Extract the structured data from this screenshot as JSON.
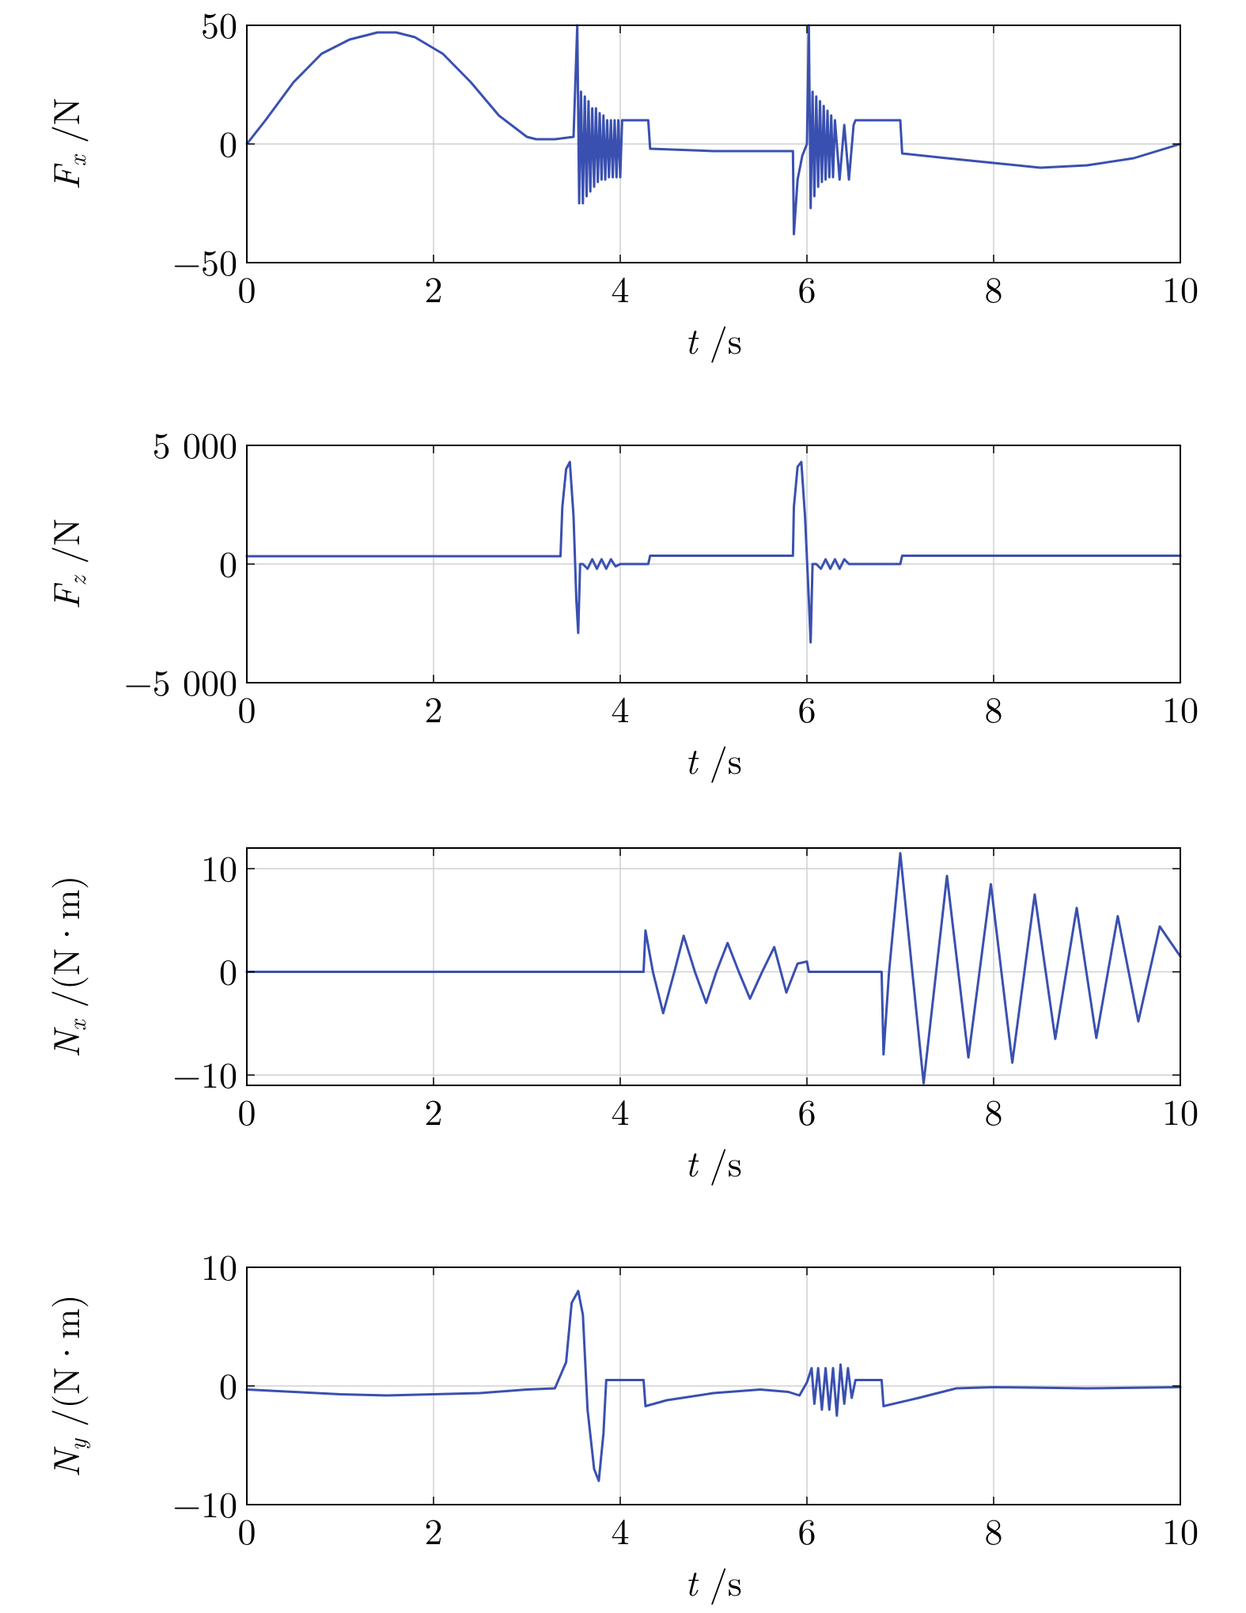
{
  "chart_data": [
    {
      "type": "line",
      "xlabel_symbol": "t",
      "xlabel_unit": " /s",
      "ylabel_symbol": "F",
      "ylabel_sub": "x",
      "ylabel_unit": " /N",
      "xlim": [
        0,
        10
      ],
      "ylim": [
        -50,
        50
      ],
      "xticks": [
        0,
        2,
        4,
        6,
        8,
        10
      ],
      "xtick_labels": [
        "0",
        "2",
        "4",
        "6",
        "8",
        "10"
      ],
      "yticks": [
        -50,
        0,
        50
      ],
      "ytick_labels": [
        "−50",
        "0",
        "50"
      ],
      "grid": true,
      "color": "#3a50b0",
      "x": [
        0,
        0.2,
        0.5,
        0.8,
        1.1,
        1.4,
        1.6,
        1.8,
        2.1,
        2.4,
        2.7,
        3.0,
        3.1,
        3.3,
        3.5,
        3.54,
        3.56,
        3.58,
        3.6,
        3.62,
        3.64,
        3.66,
        3.68,
        3.7,
        3.72,
        3.74,
        3.76,
        3.78,
        3.8,
        3.82,
        3.84,
        3.86,
        3.88,
        3.9,
        3.92,
        3.94,
        3.96,
        3.98,
        4.0,
        4.02,
        4.3,
        4.32,
        5.0,
        5.85,
        5.86,
        5.9,
        5.95,
        6.0,
        6.02,
        6.04,
        6.06,
        6.08,
        6.1,
        6.12,
        6.14,
        6.16,
        6.18,
        6.2,
        6.22,
        6.24,
        6.26,
        6.28,
        6.3,
        6.35,
        6.4,
        6.45,
        6.5,
        6.52,
        7.0,
        7.02,
        7.5,
        8.0,
        8.5,
        9.0,
        9.5,
        10.0
      ],
      "y": [
        0,
        10,
        26,
        38,
        44,
        47,
        47,
        45,
        38,
        26,
        12,
        3,
        2,
        2,
        3,
        50,
        -25,
        22,
        -25,
        20,
        -22,
        18,
        -20,
        15,
        -18,
        15,
        -16,
        13,
        -15,
        12,
        -15,
        10,
        -14,
        10,
        -14,
        10,
        -14,
        10,
        -14,
        10,
        10,
        -2,
        -3,
        -3,
        -38,
        -15,
        -5,
        0,
        50,
        -27,
        22,
        -22,
        20,
        -18,
        18,
        -16,
        16,
        -15,
        14,
        -14,
        12,
        -14,
        10,
        -15,
        8,
        -15,
        8,
        10,
        10,
        -4,
        -6,
        -8,
        -10,
        -9,
        -6,
        0
      ]
    },
    {
      "type": "line",
      "xlabel_symbol": "t",
      "xlabel_unit": " /s",
      "ylabel_symbol": "F",
      "ylabel_sub": "z",
      "ylabel_unit": " /N",
      "xlim": [
        0,
        10
      ],
      "ylim": [
        -5000,
        5000
      ],
      "xticks": [
        0,
        2,
        4,
        6,
        8,
        10
      ],
      "xtick_labels": [
        "0",
        "2",
        "4",
        "6",
        "8",
        "10"
      ],
      "yticks": [
        -5000,
        0,
        5000
      ],
      "ytick_labels": [
        "−5 000",
        "0",
        "5 000"
      ],
      "grid": true,
      "color": "#3a50b0",
      "x": [
        0,
        3.36,
        3.38,
        3.42,
        3.46,
        3.5,
        3.53,
        3.55,
        3.57,
        3.6,
        3.65,
        3.7,
        3.75,
        3.8,
        3.85,
        3.9,
        3.95,
        4.0,
        4.3,
        4.32,
        5.85,
        5.86,
        5.9,
        5.94,
        5.98,
        6.02,
        6.04,
        6.06,
        6.1,
        6.15,
        6.2,
        6.25,
        6.3,
        6.35,
        6.4,
        6.45,
        7.0,
        7.02,
        10.0
      ],
      "y": [
        330,
        330,
        2400,
        4000,
        4300,
        2000,
        -1500,
        -2900,
        0,
        0,
        -200,
        200,
        -200,
        200,
        -200,
        200,
        -100,
        0,
        0,
        350,
        350,
        2400,
        4100,
        4300,
        2000,
        -1500,
        -3300,
        0,
        0,
        -200,
        200,
        -200,
        200,
        -200,
        200,
        0,
        0,
        350,
        350
      ]
    },
    {
      "type": "line",
      "xlabel_symbol": "t",
      "xlabel_unit": " /s",
      "ylabel_symbol": "N",
      "ylabel_sub": "x",
      "ylabel_unit": " /(N·m)",
      "xlim": [
        0,
        10
      ],
      "ylim": [
        -11,
        12
      ],
      "xticks": [
        0,
        2,
        4,
        6,
        8,
        10
      ],
      "xtick_labels": [
        "0",
        "2",
        "4",
        "6",
        "8",
        "10"
      ],
      "yticks": [
        -10,
        0,
        10
      ],
      "ytick_labels": [
        "−10",
        "0",
        "10"
      ],
      "grid": true,
      "color": "#3a50b0",
      "x": [
        0,
        4.25,
        4.27,
        4.35,
        4.46,
        4.58,
        4.68,
        4.8,
        4.92,
        5.03,
        5.15,
        5.27,
        5.39,
        5.52,
        5.65,
        5.78,
        5.9,
        6.0,
        6.02,
        6.8,
        6.82,
        6.88,
        7.0,
        7.25,
        7.5,
        7.73,
        7.97,
        8.2,
        8.44,
        8.66,
        8.89,
        9.1,
        9.33,
        9.55,
        9.78,
        10.0
      ],
      "y": [
        0,
        0,
        4,
        0,
        -4,
        0,
        3.5,
        0,
        -3,
        0,
        2.8,
        0,
        -2.6,
        0,
        2.4,
        -2,
        0.8,
        1,
        0,
        0,
        -8,
        0,
        11.5,
        -10.8,
        9.3,
        -8.3,
        8.5,
        -8.8,
        7.5,
        -6.5,
        6.2,
        -6.4,
        5.4,
        -4.8,
        4.4,
        1.5
      ]
    },
    {
      "type": "line",
      "xlabel_symbol": "t",
      "xlabel_unit": " /s",
      "ylabel_symbol": "N",
      "ylabel_sub": "y",
      "ylabel_unit": " /(N·m)",
      "xlim": [
        0,
        10
      ],
      "ylim": [
        -10,
        10
      ],
      "xticks": [
        0,
        2,
        4,
        6,
        8,
        10
      ],
      "xtick_labels": [
        "0",
        "2",
        "4",
        "6",
        "8",
        "10"
      ],
      "yticks": [
        -10,
        0,
        10
      ],
      "ytick_labels": [
        "−10",
        "0",
        "10"
      ],
      "grid": true,
      "color": "#3a50b0",
      "x": [
        0,
        0.5,
        1.0,
        1.5,
        2.0,
        2.5,
        3.0,
        3.3,
        3.42,
        3.48,
        3.55,
        3.6,
        3.65,
        3.72,
        3.77,
        3.82,
        3.85,
        4.25,
        4.27,
        4.5,
        5.0,
        5.5,
        5.8,
        5.92,
        6.0,
        6.05,
        6.08,
        6.12,
        6.16,
        6.2,
        6.24,
        6.28,
        6.32,
        6.36,
        6.4,
        6.44,
        6.48,
        6.52,
        6.8,
        6.82,
        7.2,
        7.6,
        8.0,
        9.0,
        10.0
      ],
      "y": [
        -0.3,
        -0.5,
        -0.7,
        -0.8,
        -0.7,
        -0.6,
        -0.3,
        -0.2,
        2,
        7,
        8,
        6,
        -2,
        -7,
        -8,
        -4,
        0.5,
        0.5,
        -1.7,
        -1.2,
        -0.6,
        -0.3,
        -0.5,
        -0.8,
        0.3,
        1.5,
        -1.5,
        1.5,
        -2,
        1.5,
        -2,
        1.5,
        -2.5,
        1.8,
        -1.5,
        1.5,
        -1,
        0.5,
        0.5,
        -1.7,
        -1,
        -0.2,
        -0.1,
        -0.2,
        -0.1
      ]
    }
  ]
}
